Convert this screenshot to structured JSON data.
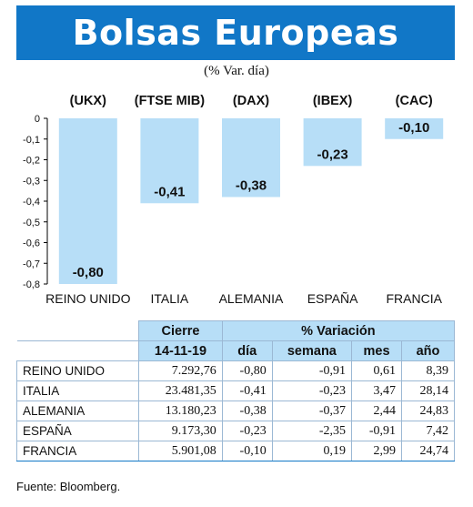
{
  "header": {
    "title": "Bolsas Europeas",
    "subtitle": "(% Var. día)"
  },
  "chart_data": {
    "type": "bar",
    "categories": [
      "REINO UNIDO",
      "ITALIA",
      "ALEMANIA",
      "ESPAÑA",
      "FRANCIA"
    ],
    "tickers": [
      "(UKX)",
      "(FTSE MIB)",
      "(DAX)",
      "(IBEX)",
      "(CAC)"
    ],
    "values": [
      -0.8,
      -0.41,
      -0.38,
      -0.23,
      -0.1
    ],
    "value_labels": [
      "-0,80",
      "-0,41",
      "-0,38",
      "-0,23",
      "-0,10"
    ],
    "ylim": [
      -0.8,
      0
    ],
    "y_ticks": [
      0,
      -0.1,
      -0.2,
      -0.3,
      -0.4,
      -0.5,
      -0.6,
      -0.7,
      -0.8
    ],
    "y_tick_labels": [
      "0",
      "-0,1",
      "-0,2",
      "-0,3",
      "-0,4",
      "-0,5",
      "-0,6",
      "-0,7",
      "-0,8"
    ],
    "bar_color": "#b7def7",
    "grid": false,
    "title": "",
    "xlabel": "",
    "ylabel": ""
  },
  "table": {
    "col_cierre": "Cierre",
    "col_variacion": "% Variación",
    "date": "14-11-19",
    "sub_headers": [
      "día",
      "semana",
      "mes",
      "año"
    ],
    "rows": [
      [
        "REINO UNIDO",
        "7.292,76",
        "-0,80",
        "-0,91",
        "0,61",
        "8,39"
      ],
      [
        "ITALIA",
        "23.481,35",
        "-0,41",
        "-0,23",
        "3,47",
        "28,14"
      ],
      [
        "ALEMANIA",
        "13.180,23",
        "-0,38",
        "-0,37",
        "2,44",
        "24,83"
      ],
      [
        "ESPAÑA",
        "9.173,30",
        "-0,23",
        "-2,35",
        "-0,91",
        "7,42"
      ],
      [
        "FRANCIA",
        "5.901,08",
        "-0,10",
        "0,19",
        "2,99",
        "24,74"
      ]
    ]
  },
  "footer": {
    "source": "Fuente: Bloomberg."
  },
  "colors": {
    "banner": "#1177c7",
    "bars": "#b7def7",
    "table_header": "#b7def7"
  }
}
